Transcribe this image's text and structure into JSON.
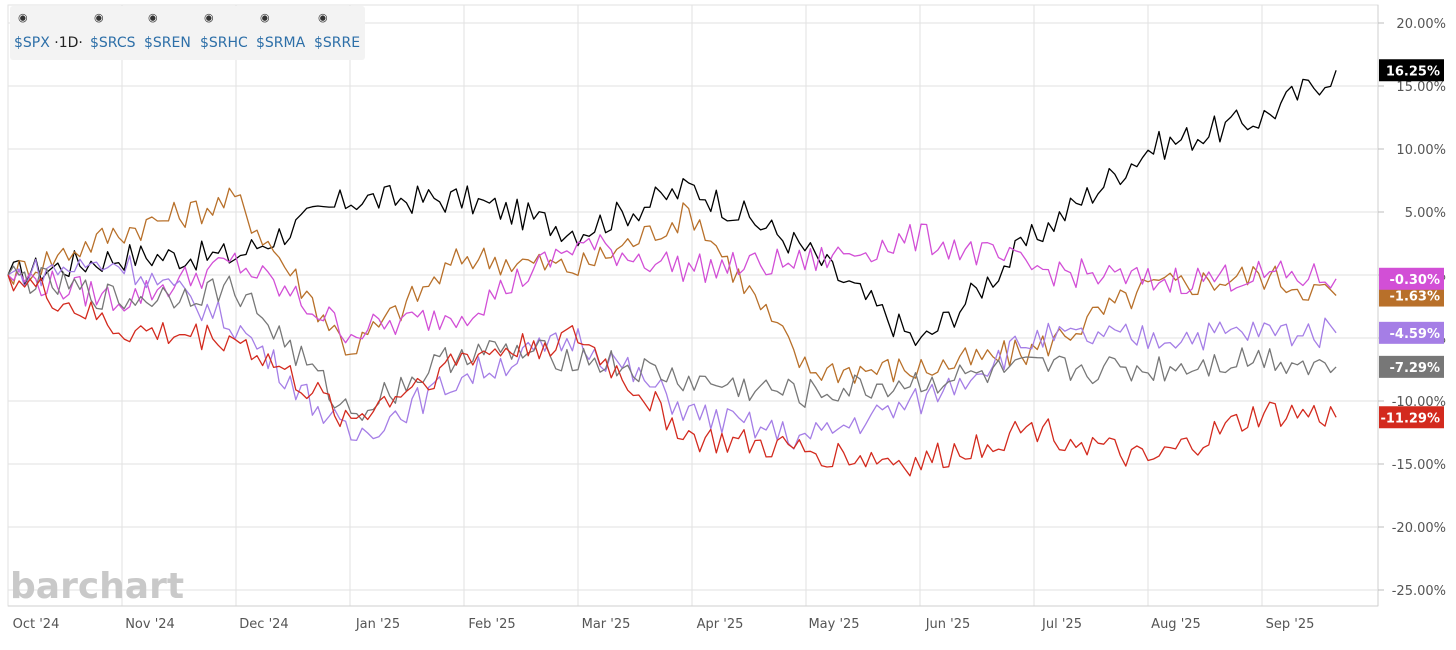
{
  "watermark": "barchart",
  "legend": {
    "items": [
      {
        "symbol": "$SPX",
        "suffix": "·1D·",
        "icon": "eye-icon"
      },
      {
        "symbol": "$SRCS",
        "suffix": "",
        "icon": "eye-icon"
      },
      {
        "symbol": "$SREN",
        "suffix": "",
        "icon": "eye-icon"
      },
      {
        "symbol": "$SRHC",
        "suffix": "",
        "icon": "eye-icon"
      },
      {
        "symbol": "$SRMA",
        "suffix": "",
        "icon": "eye-icon"
      },
      {
        "symbol": "$SRRE",
        "suffix": "",
        "icon": "eye-icon"
      }
    ]
  },
  "chart_data": {
    "type": "line",
    "xlabel": "",
    "ylabel": "",
    "x_ticks": [
      "Oct '24",
      "Nov '24",
      "Dec '24",
      "Jan '25",
      "Feb '25",
      "Mar '25",
      "Apr '25",
      "May '25",
      "Jun '25",
      "Jul '25",
      "Aug '25",
      "Sep '25"
    ],
    "y_ticks": [
      "20.00%",
      "15.00%",
      "10.00%",
      "5.00%",
      "0.00%",
      "-5.00%",
      "-10.00%",
      "-15.00%",
      "-20.00%",
      "-25.00%"
    ],
    "ylim": [
      -25,
      21
    ],
    "grid": true,
    "y_axis_side": "right",
    "series": [
      {
        "name": "$SPX",
        "color": "#000000",
        "last_label": "16.25%",
        "x": [
          0,
          1,
          2,
          3,
          4,
          5,
          6,
          7,
          8,
          9,
          10,
          11,
          11.65
        ],
        "values": [
          0,
          1.5,
          1.5,
          6,
          6,
          3.5,
          7,
          2,
          -5.5,
          3,
          10,
          12.5,
          16.25
        ]
      },
      {
        "name": "$SRCS",
        "color": "#b8702a",
        "last_label": "-1.63%",
        "x": [
          0,
          1,
          2,
          3,
          4,
          5,
          6,
          7,
          8,
          9,
          10,
          11,
          11.65
        ],
        "values": [
          0,
          3.5,
          6,
          -6,
          1.5,
          0.5,
          5,
          -7.5,
          -7.5,
          -6,
          -1,
          0,
          -1.63
        ]
      },
      {
        "name": "$SREN",
        "color": "#d24fd6",
        "last_label": "-0.30%",
        "x": [
          0,
          1,
          2,
          3,
          4,
          5,
          6,
          7,
          8,
          9,
          10,
          11,
          11.65
        ],
        "values": [
          0,
          -2,
          1,
          -4.5,
          -3,
          2.5,
          0.5,
          1,
          3,
          0.5,
          -0.5,
          0,
          -0.3
        ]
      },
      {
        "name": "$SRHC",
        "color": "#a57ee6",
        "last_label": "-4.59%",
        "x": [
          0,
          1,
          2,
          3,
          4,
          5,
          6,
          7,
          8,
          9,
          10,
          11,
          11.65
        ],
        "values": [
          0,
          1,
          -4,
          -13,
          -8,
          -5,
          -11,
          -13,
          -10,
          -5,
          -5,
          -4.5,
          -4.59
        ]
      },
      {
        "name": "$SRMA",
        "color": "#777777",
        "last_label": "-7.29%",
        "x": [
          0,
          1,
          2,
          3,
          4,
          5,
          6,
          7,
          8,
          9,
          10,
          11,
          11.65
        ],
        "values": [
          0,
          -2,
          -1,
          -11,
          -6,
          -6.5,
          -8.5,
          -9.5,
          -8.5,
          -7.5,
          -7.5,
          -6.5,
          -7.29
        ]
      },
      {
        "name": "$SRRE",
        "color": "#d32a1e",
        "last_label": "-11.29%",
        "x": [
          0,
          1,
          2,
          3,
          4,
          5,
          6,
          7,
          8,
          9,
          10,
          11,
          11.65
        ],
        "values": [
          0,
          -4.5,
          -5,
          -11.5,
          -6.5,
          -5,
          -13,
          -14,
          -15,
          -12,
          -15,
          -11,
          -11.29
        ]
      }
    ]
  }
}
